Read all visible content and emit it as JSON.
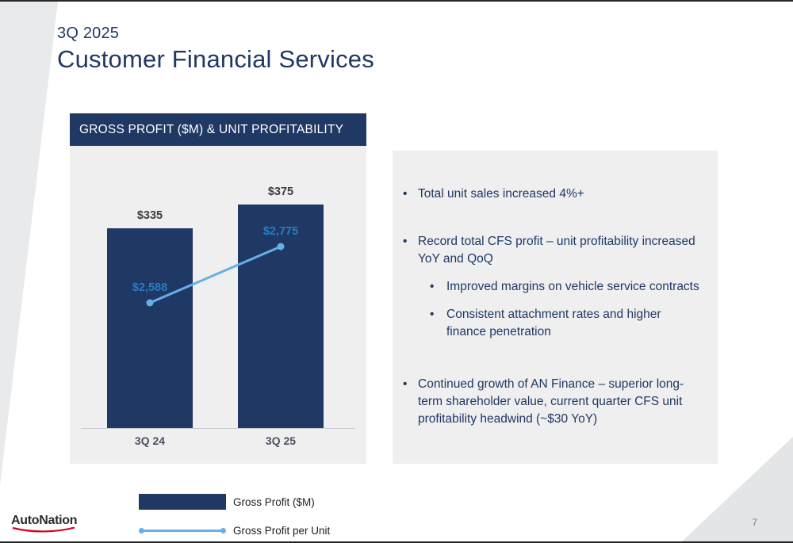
{
  "slide": {
    "eyebrow": "3Q 2025",
    "title": "Customer Financial Services"
  },
  "chart_data": {
    "type": "bar+line",
    "title": "GROSS PROFIT ($M) & UNIT PROFITABILITY",
    "categories": [
      "3Q 24",
      "3Q 25"
    ],
    "series": [
      {
        "name": "Gross Profit ($M)",
        "type": "bar",
        "values": [
          335,
          375
        ],
        "labels": [
          "$335",
          "$375"
        ],
        "color": "#1F3864"
      },
      {
        "name": "Gross Profit per Unit",
        "type": "line",
        "values": [
          2588,
          2775
        ],
        "labels": [
          "$2,588",
          "$2,775"
        ],
        "color": "#66AFE8"
      }
    ],
    "ylim_bar": [
      0,
      400
    ],
    "gridlines": false,
    "legend_position": "bottom-left"
  },
  "bullets": [
    {
      "level": 1,
      "text": "Total unit sales increased 4%+"
    },
    {
      "level": 1,
      "text": "Record total CFS profit – unit profitability increased YoY and QoQ"
    },
    {
      "level": 2,
      "text": "Improved margins on vehicle service contracts"
    },
    {
      "level": 2,
      "text": "Consistent attachment rates and higher finance penetration"
    },
    {
      "level": 1,
      "text": "Continued growth of AN Finance – superior long-term shareholder value, current quarter CFS unit profitability headwind (~$30 YoY)"
    }
  ],
  "footer": {
    "logo_text": "AutoNation",
    "page_number": "7"
  },
  "colors": {
    "navy": "#1F3864",
    "line_blue": "#66AFE8",
    "value_blue": "#2B7BC7",
    "panel_gray": "#EFEFF0",
    "accent_red": "#D0021B"
  }
}
